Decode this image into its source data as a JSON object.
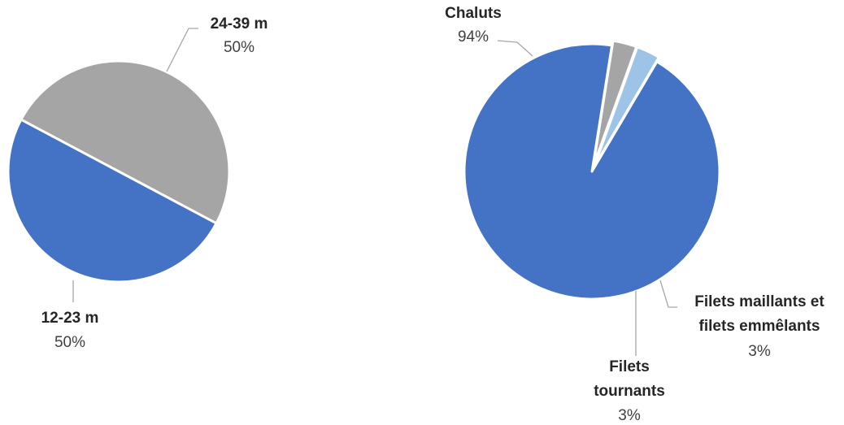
{
  "chart_data": [
    {
      "type": "pie",
      "categories": [
        "24-39 m",
        "12-23 m"
      ],
      "values": [
        50,
        50
      ],
      "labels": [
        "50%",
        "50%"
      ],
      "colors": [
        "#a5a5a5",
        "#4472c4"
      ],
      "title": ""
    },
    {
      "type": "pie",
      "categories": [
        "Chaluts",
        "Filets maillants et filets emmêlants",
        "Filets tournants"
      ],
      "label_lines": [
        [
          "Chaluts"
        ],
        [
          "Filets maillants et",
          "filets emmêlants"
        ],
        [
          "Filets",
          "tournants"
        ]
      ],
      "values": [
        94,
        3,
        3
      ],
      "labels": [
        "94%",
        "3%",
        "3%"
      ],
      "colors": [
        "#4472c4",
        "#a5a5a5",
        "#9dc3e6"
      ],
      "title": ""
    }
  ]
}
